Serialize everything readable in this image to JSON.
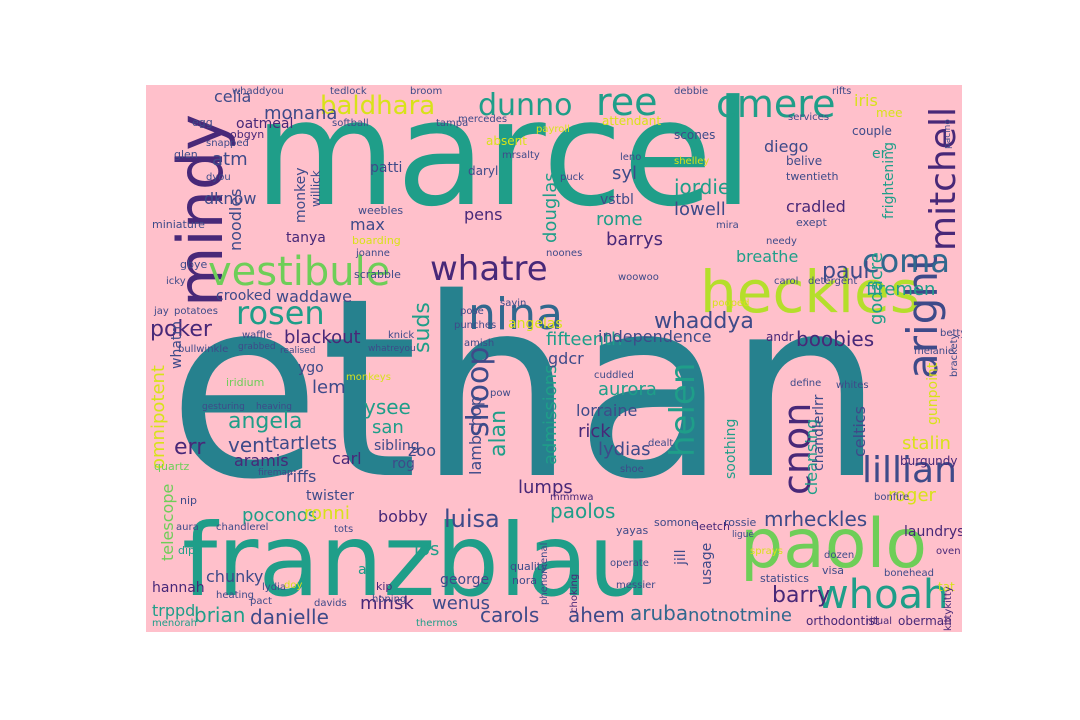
{
  "background": "#ffc0cb",
  "palette": {
    "teal": "#1f9e89",
    "teal_dark": "#26818e",
    "green": "#6ece58",
    "lime": "#b5de2b",
    "yellow": "#d8e219",
    "blue": "#31688e",
    "navy": "#3e4a89",
    "indigo": "#482878",
    "purple": "#440154",
    "mint": "#35b779"
  },
  "words": [
    {
      "text": "marcel",
      "color": "teal"
    },
    {
      "text": "ethan",
      "color": "teal_dark"
    },
    {
      "text": "franzblau",
      "color": "teal"
    },
    {
      "text": "heckles",
      "color": "lime"
    },
    {
      "text": "paolo",
      "color": "green"
    },
    {
      "text": "mindy",
      "color": "indigo"
    },
    {
      "text": "vestibule",
      "color": "green"
    },
    {
      "text": "whatre",
      "color": "indigo"
    },
    {
      "text": "cmere",
      "color": "teal"
    },
    {
      "text": "nina",
      "color": "blue"
    },
    {
      "text": "aright",
      "color": "navy"
    },
    {
      "text": "mitchell",
      "color": "indigo"
    },
    {
      "text": "whoah",
      "color": "teal"
    },
    {
      "text": "lillian",
      "color": "navy"
    },
    {
      "text": "cnon",
      "color": "indigo"
    },
    {
      "text": "helen",
      "color": "teal"
    },
    {
      "text": "shoop",
      "color": "navy"
    },
    {
      "text": "coma",
      "color": "blue"
    },
    {
      "text": "ree",
      "color": "teal"
    },
    {
      "text": "dunno",
      "color": "teal"
    },
    {
      "text": "baldhara",
      "color": "yellow"
    },
    {
      "text": "rosen",
      "color": "teal"
    },
    {
      "text": "luisa",
      "color": "navy"
    },
    {
      "text": "paolos",
      "color": "teal"
    },
    {
      "text": "brian",
      "color": "teal"
    },
    {
      "text": "danielle",
      "color": "navy"
    },
    {
      "text": "aruba",
      "color": "blue"
    },
    {
      "text": "carols",
      "color": "navy"
    },
    {
      "text": "ahem",
      "color": "navy"
    },
    {
      "text": "notnotmine",
      "color": "blue"
    },
    {
      "text": "barry",
      "color": "indigo"
    },
    {
      "text": "mrheckles",
      "color": "navy"
    },
    {
      "text": "poker",
      "color": "indigo"
    },
    {
      "text": "err",
      "color": "indigo"
    },
    {
      "text": "vent",
      "color": "navy"
    },
    {
      "text": "tartlets",
      "color": "navy"
    },
    {
      "text": "angela",
      "color": "teal"
    },
    {
      "text": "ysee",
      "color": "teal"
    },
    {
      "text": "san",
      "color": "teal"
    },
    {
      "text": "lem",
      "color": "navy"
    },
    {
      "text": "whaddya",
      "color": "navy"
    },
    {
      "text": "paul",
      "color": "navy"
    },
    {
      "text": "jordie",
      "color": "teal"
    },
    {
      "text": "douglas",
      "color": "teal"
    },
    {
      "text": "rome",
      "color": "teal"
    },
    {
      "text": "barrys",
      "color": "indigo"
    },
    {
      "text": "lowell",
      "color": "navy"
    },
    {
      "text": "fifteenth",
      "color": "teal"
    },
    {
      "text": "independence",
      "color": "navy"
    },
    {
      "text": "boobies",
      "color": "indigo"
    },
    {
      "text": "godacre",
      "color": "teal"
    },
    {
      "text": "firemen",
      "color": "teal"
    },
    {
      "text": "stalin",
      "color": "yellow"
    },
    {
      "text": "roger",
      "color": "yellow"
    },
    {
      "text": "celtics",
      "color": "navy"
    },
    {
      "text": "cleansing",
      "color": "teal"
    },
    {
      "text": "chandlerlrr",
      "color": "navy"
    },
    {
      "text": "lydias",
      "color": "navy"
    },
    {
      "text": "rick",
      "color": "indigo"
    },
    {
      "text": "lumps",
      "color": "indigo"
    },
    {
      "text": "admissions",
      "color": "teal"
    },
    {
      "text": "aurora",
      "color": "teal"
    },
    {
      "text": "lorraine",
      "color": "navy"
    },
    {
      "text": "alan",
      "color": "teal"
    },
    {
      "text": "lambchop",
      "color": "navy"
    },
    {
      "text": "suds",
      "color": "teal"
    },
    {
      "text": "blackout",
      "color": "indigo"
    },
    {
      "text": "crooked",
      "color": "navy"
    },
    {
      "text": "waddawe",
      "color": "navy"
    },
    {
      "text": "noodles",
      "color": "navy"
    },
    {
      "text": "dknow",
      "color": "navy"
    },
    {
      "text": "atm",
      "color": "navy"
    },
    {
      "text": "monana",
      "color": "navy"
    },
    {
      "text": "celia",
      "color": "navy"
    },
    {
      "text": "oatmeal",
      "color": "indigo"
    },
    {
      "text": "monkey",
      "color": "navy"
    },
    {
      "text": "max",
      "color": "navy"
    },
    {
      "text": "tanya",
      "color": "indigo"
    },
    {
      "text": "patti",
      "color": "navy"
    },
    {
      "text": "willick",
      "color": "navy"
    },
    {
      "text": "pens",
      "color": "indigo"
    },
    {
      "text": "syl",
      "color": "navy"
    },
    {
      "text": "vstbl",
      "color": "navy"
    },
    {
      "text": "cradled",
      "color": "indigo"
    },
    {
      "text": "breathe",
      "color": "teal"
    },
    {
      "text": "diego",
      "color": "navy"
    },
    {
      "text": "frightening",
      "color": "teal"
    },
    {
      "text": "omnipotent",
      "color": "yellow"
    },
    {
      "text": "telescope",
      "color": "green"
    },
    {
      "text": "poconos",
      "color": "teal"
    },
    {
      "text": "ronni",
      "color": "yellow"
    },
    {
      "text": "bobby",
      "color": "indigo"
    },
    {
      "text": "twister",
      "color": "navy"
    },
    {
      "text": "riffs",
      "color": "navy"
    },
    {
      "text": "aramis",
      "color": "indigo"
    },
    {
      "text": "carl",
      "color": "indigo"
    },
    {
      "text": "sibling",
      "color": "navy"
    },
    {
      "text": "zoo",
      "color": "navy"
    },
    {
      "text": "rog",
      "color": "navy"
    },
    {
      "text": "minsk",
      "color": "indigo"
    },
    {
      "text": "wenus",
      "color": "navy"
    },
    {
      "text": "los",
      "color": "teal"
    },
    {
      "text": "george",
      "color": "navy"
    },
    {
      "text": "chunky",
      "color": "navy"
    },
    {
      "text": "trppd",
      "color": "teal"
    },
    {
      "text": "hannah",
      "color": "indigo"
    },
    {
      "text": "usage",
      "color": "navy"
    },
    {
      "text": "jill",
      "color": "navy"
    },
    {
      "text": "soothing",
      "color": "teal"
    },
    {
      "text": "laundrys",
      "color": "indigo"
    },
    {
      "text": "burgundy",
      "color": "indigo"
    },
    {
      "text": "gunpoint",
      "color": "yellow"
    },
    {
      "text": "orthodontist",
      "color": "indigo"
    },
    {
      "text": "oberman",
      "color": "indigo"
    },
    {
      "text": "ritual",
      "color": "indigo"
    },
    {
      "text": "statistics",
      "color": "navy"
    },
    {
      "text": "visa",
      "color": "navy"
    },
    {
      "text": "rossie",
      "color": "navy"
    },
    {
      "text": "leetch",
      "color": "indigo"
    },
    {
      "text": "yayas",
      "color": "navy"
    },
    {
      "text": "somone",
      "color": "navy"
    },
    {
      "text": "gdcr",
      "color": "navy"
    },
    {
      "text": "whatm",
      "color": "navy"
    },
    {
      "text": "ygo",
      "color": "navy"
    },
    {
      "text": "scrabble",
      "color": "navy"
    },
    {
      "text": "belive",
      "color": "navy"
    },
    {
      "text": "twentieth",
      "color": "navy"
    },
    {
      "text": "exept",
      "color": "navy"
    },
    {
      "text": "mira",
      "color": "navy"
    },
    {
      "text": "couple",
      "color": "navy"
    },
    {
      "text": "services",
      "color": "navy"
    },
    {
      "text": "scones",
      "color": "navy"
    },
    {
      "text": "attendant",
      "color": "yellow"
    },
    {
      "text": "iris",
      "color": "yellow"
    },
    {
      "text": "mee",
      "color": "yellow"
    },
    {
      "text": "er",
      "color": "teal"
    },
    {
      "text": "angelas",
      "color": "yellow"
    },
    {
      "text": "iridium",
      "color": "green"
    },
    {
      "text": "puck",
      "color": "navy"
    },
    {
      "text": "daryl",
      "color": "navy"
    },
    {
      "text": "mrsalty",
      "color": "navy"
    },
    {
      "text": "weebles",
      "color": "navy"
    },
    {
      "text": "boarding",
      "color": "yellow"
    },
    {
      "text": "absent",
      "color": "yellow"
    },
    {
      "text": "softball",
      "color": "navy"
    },
    {
      "text": "tampa",
      "color": "navy"
    },
    {
      "text": "whaddyou",
      "color": "navy"
    },
    {
      "text": "tedlock",
      "color": "navy"
    },
    {
      "text": "glen",
      "color": "navy"
    },
    {
      "text": "snapped",
      "color": "navy"
    },
    {
      "text": "obgyn",
      "color": "indigo"
    },
    {
      "text": "dyou",
      "color": "navy"
    },
    {
      "text": "egg",
      "color": "navy"
    },
    {
      "text": "miniature",
      "color": "navy"
    },
    {
      "text": "gbye",
      "color": "navy"
    },
    {
      "text": "icky",
      "color": "navy"
    },
    {
      "text": "jay",
      "color": "navy"
    },
    {
      "text": "potatoes",
      "color": "navy"
    },
    {
      "text": "bullwinkle",
      "color": "navy"
    },
    {
      "text": "fireman",
      "color": "navy"
    },
    {
      "text": "quartz",
      "color": "green"
    },
    {
      "text": "nip",
      "color": "navy"
    },
    {
      "text": "aura",
      "color": "navy"
    },
    {
      "text": "dip",
      "color": "teal"
    },
    {
      "text": "chandlerel",
      "color": "navy"
    },
    {
      "text": "heating",
      "color": "navy"
    },
    {
      "text": "lydia",
      "color": "navy"
    },
    {
      "text": "pact",
      "color": "navy"
    },
    {
      "text": "doy",
      "color": "yellow"
    },
    {
      "text": "davids",
      "color": "navy"
    },
    {
      "text": "kip",
      "color": "indigo"
    },
    {
      "text": "al",
      "color": "teal"
    },
    {
      "text": "honing",
      "color": "navy"
    },
    {
      "text": "tots",
      "color": "navy"
    },
    {
      "text": "quality",
      "color": "navy"
    },
    {
      "text": "nora",
      "color": "navy"
    },
    {
      "text": "mmmwa",
      "color": "indigo"
    },
    {
      "text": "shoe",
      "color": "navy"
    },
    {
      "text": "dealt",
      "color": "navy"
    },
    {
      "text": "punches",
      "color": "navy"
    },
    {
      "text": "amish",
      "color": "navy"
    },
    {
      "text": "cuddled",
      "color": "navy"
    },
    {
      "text": "define",
      "color": "navy"
    },
    {
      "text": "whites",
      "color": "navy"
    },
    {
      "text": "melanie",
      "color": "navy"
    },
    {
      "text": "betty",
      "color": "navy"
    },
    {
      "text": "carol",
      "color": "navy"
    },
    {
      "text": "detergent",
      "color": "navy"
    },
    {
      "text": "needy",
      "color": "navy"
    },
    {
      "text": "leno",
      "color": "navy"
    },
    {
      "text": "shelley",
      "color": "yellow"
    },
    {
      "text": "payroll",
      "color": "yellow"
    },
    {
      "text": "mercedes",
      "color": "navy"
    },
    {
      "text": "broom",
      "color": "navy"
    },
    {
      "text": "debbie",
      "color": "navy"
    },
    {
      "text": "rifts",
      "color": "navy"
    },
    {
      "text": "pooped",
      "color": "yellow"
    },
    {
      "text": "andr",
      "color": "indigo"
    },
    {
      "text": "woowoo",
      "color": "navy"
    },
    {
      "text": "noones",
      "color": "navy"
    },
    {
      "text": "pose",
      "color": "navy"
    },
    {
      "text": "sayin",
      "color": "navy"
    },
    {
      "text": "pow",
      "color": "navy"
    },
    {
      "text": "knick",
      "color": "navy"
    },
    {
      "text": "monkeys",
      "color": "yellow"
    },
    {
      "text": "gesturing",
      "color": "navy"
    },
    {
      "text": "heaving",
      "color": "navy"
    },
    {
      "text": "joanne",
      "color": "navy"
    },
    {
      "text": "bonfire",
      "color": "navy"
    },
    {
      "text": "oven",
      "color": "indigo"
    },
    {
      "text": "tat",
      "color": "yellow"
    },
    {
      "text": "kittykitty",
      "color": "indigo"
    },
    {
      "text": "menorah",
      "color": "teal"
    },
    {
      "text": "thermos",
      "color": "teal"
    },
    {
      "text": "sprays",
      "color": "yellow"
    },
    {
      "text": "dozen",
      "color": "navy"
    },
    {
      "text": "bonehead",
      "color": "navy"
    },
    {
      "text": "phenomenal",
      "color": "navy"
    },
    {
      "text": "choking",
      "color": "indigo"
    },
    {
      "text": "operate",
      "color": "navy"
    },
    {
      "text": "messier",
      "color": "navy"
    },
    {
      "text": "brackety",
      "color": "navy"
    },
    {
      "text": "whatreyou",
      "color": "navy"
    },
    {
      "text": "realised",
      "color": "navy"
    },
    {
      "text": "grabbed",
      "color": "navy"
    },
    {
      "text": "waffle",
      "color": "navy"
    },
    {
      "text": "pacino",
      "color": "navy"
    },
    {
      "text": "ligue",
      "color": "navy"
    }
  ]
}
